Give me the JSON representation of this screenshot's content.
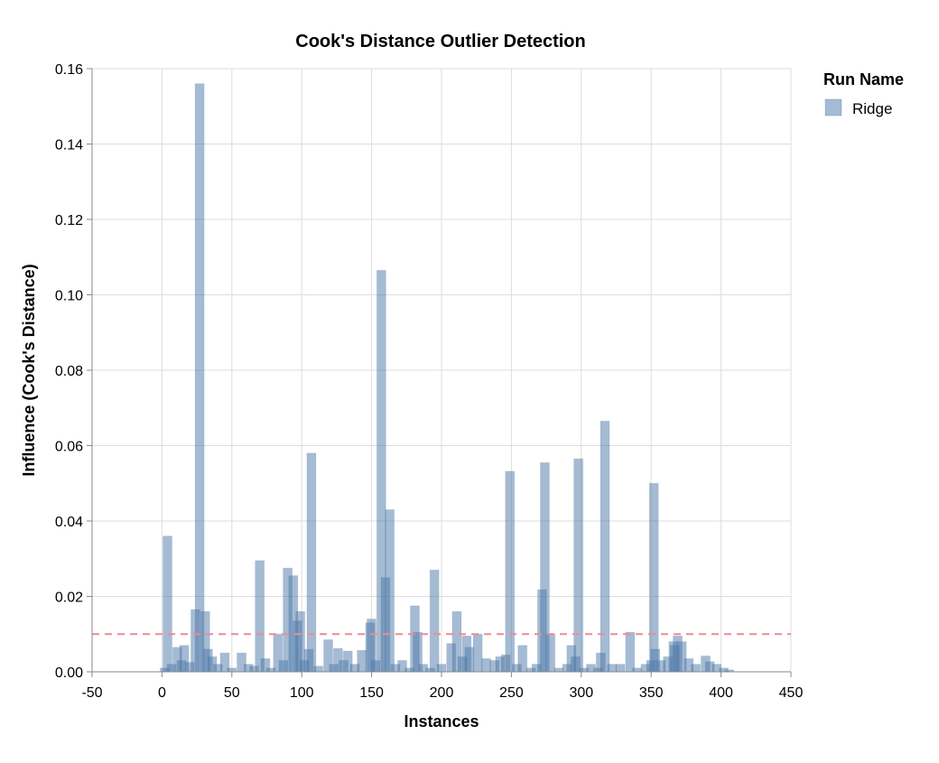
{
  "chart_data": {
    "type": "bar",
    "title": "Cook's Distance Outlier Detection",
    "xlabel": "Instances",
    "ylabel": "Influence (Cook's Distance)",
    "xlim": [
      -50,
      450
    ],
    "ylim": [
      0,
      0.16
    ],
    "xticks": [
      "-50",
      "0",
      "50",
      "100",
      "150",
      "200",
      "250",
      "300",
      "350",
      "400",
      "450"
    ],
    "yticks": [
      "0.00",
      "0.02",
      "0.04",
      "0.06",
      "0.08",
      "0.10",
      "0.12",
      "0.14",
      "0.16"
    ],
    "grid": true,
    "legend": {
      "title": "Run Name",
      "placement": "right",
      "entries": [
        {
          "name": "Ridge",
          "color": "#4c78a8"
        }
      ]
    },
    "threshold": {
      "value": 0.01,
      "color": "#f08a94",
      "style": "dashed"
    },
    "series": [
      {
        "name": "Ridge",
        "color": "#4c78a8",
        "x": [
          0,
          2,
          5,
          9,
          12,
          14,
          18,
          22,
          25,
          29,
          31,
          34,
          38,
          43,
          48,
          55,
          60,
          64,
          68,
          72,
          76,
          81,
          85,
          88,
          92,
          95,
          97,
          100,
          103,
          105,
          110,
          117,
          121,
          124,
          128,
          131,
          136,
          141,
          147,
          148,
          151,
          155,
          158,
          161,
          165,
          170,
          175,
          179,
          181,
          185,
          190,
          193,
          198,
          205,
          209,
          213,
          216,
          218,
          224,
          230,
          236,
          240,
          244,
          247,
          252,
          256,
          262,
          266,
          270,
          272,
          276,
          282,
          288,
          291,
          294,
          296,
          300,
          305,
          310,
          312,
          315,
          320,
          326,
          333,
          338,
          344,
          348,
          350,
          351,
          355,
          360,
          364,
          365,
          367,
          370,
          375,
          380,
          387,
          390,
          395,
          400,
          404
        ],
        "y": [
          0.001,
          0.036,
          0.002,
          0.0065,
          0.003,
          0.007,
          0.0025,
          0.0165,
          0.156,
          0.016,
          0.006,
          0.004,
          0.002,
          0.005,
          0.001,
          0.005,
          0.002,
          0.0015,
          0.0295,
          0.0035,
          0.001,
          0.01,
          0.003,
          0.0275,
          0.0255,
          0.0135,
          0.016,
          0.003,
          0.006,
          0.058,
          0.0015,
          0.0085,
          0.002,
          0.0062,
          0.003,
          0.0055,
          0.002,
          0.0057,
          0.013,
          0.014,
          0.003,
          0.1065,
          0.025,
          0.043,
          0.002,
          0.003,
          0.001,
          0.0175,
          0.0105,
          0.002,
          0.001,
          0.027,
          0.002,
          0.0075,
          0.016,
          0.004,
          0.0095,
          0.0065,
          0.01,
          0.0035,
          0.003,
          0.004,
          0.0045,
          0.0532,
          0.002,
          0.007,
          0.001,
          0.002,
          0.0218,
          0.0555,
          0.01,
          0.001,
          0.002,
          0.007,
          0.004,
          0.0565,
          0.001,
          0.002,
          0.001,
          0.005,
          0.0665,
          0.002,
          0.002,
          0.0105,
          0.001,
          0.002,
          0.003,
          0.05,
          0.006,
          0.003,
          0.004,
          0.008,
          0.007,
          0.0095,
          0.008,
          0.0035,
          0.002,
          0.0042,
          0.0027,
          0.002,
          0.001,
          0.0005
        ]
      }
    ]
  }
}
